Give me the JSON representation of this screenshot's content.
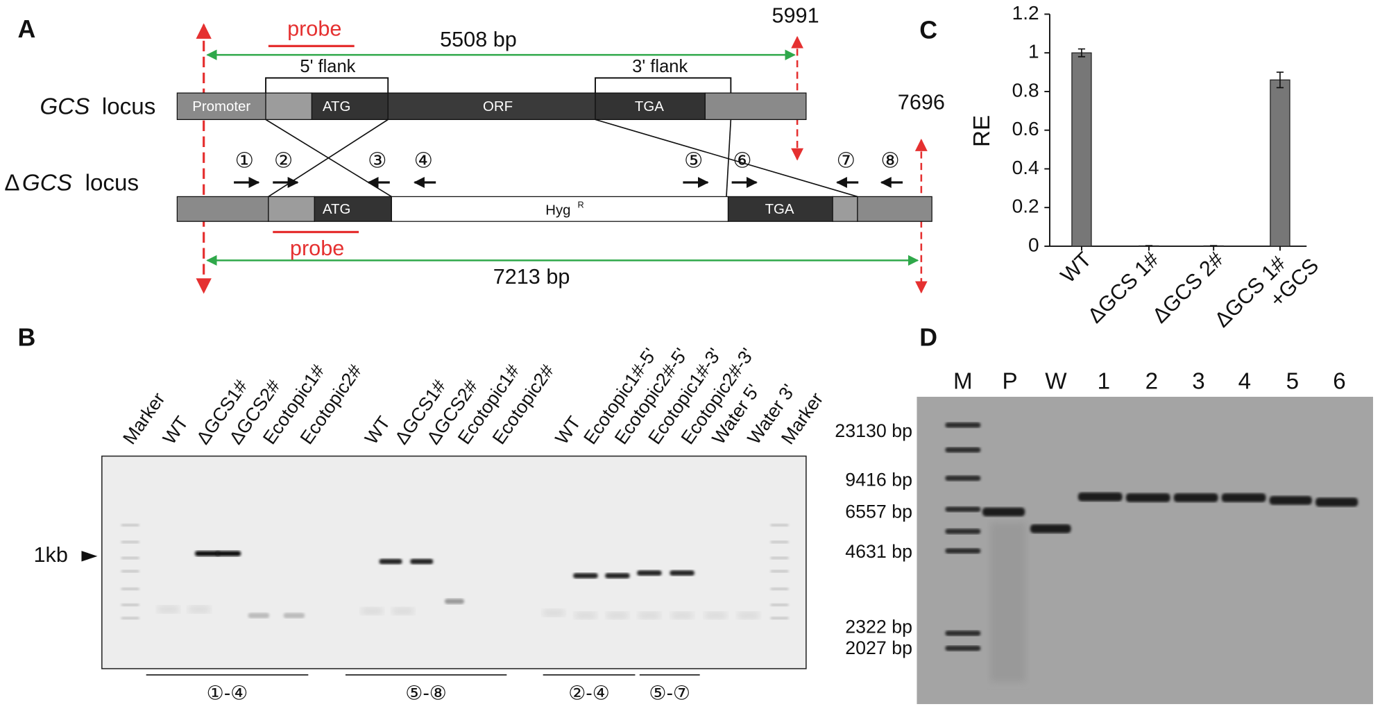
{
  "panel_a": {
    "letter": "A",
    "probe_top": "probe",
    "length_top": "5508 bp",
    "pos_top": "5991",
    "flank_5": "5' flank",
    "flank_3": "3' flank",
    "wt_locus": {
      "gene": "GCS",
      "label": "locus"
    },
    "wt_segments": [
      "Promoter",
      "ATG",
      "ORF",
      "TGA"
    ],
    "pos_right": "7696",
    "primers": [
      "①",
      "②",
      "③",
      "④",
      "⑤",
      "⑥",
      "⑦",
      "⑧"
    ],
    "mut_locus": {
      "delta": "Δ",
      "gene": "GCS",
      "label": "locus"
    },
    "mut_segments": {
      "atg": "ATG",
      "hyg": "Hyg",
      "hyg_sup": "R",
      "tga": "TGA"
    },
    "probe_bottom": "probe",
    "length_bottom": "7213 bp"
  },
  "panel_b": {
    "letter": "B",
    "lanes": [
      "Marker",
      "WT",
      "ΔGCS1#",
      "ΔGCS2#",
      "Ecotopic1#",
      "Ecotopic2#",
      "WT",
      "ΔGCS1#",
      "ΔGCS2#",
      "Ecotopic1#",
      "Ecotopic2#",
      "WT",
      "Ecotopic1#-5'",
      "Ecotopic2#-5'",
      "Ecotopic1#-3'",
      "Ecotopic2#-3'",
      "Water 5'",
      "Water 3'",
      "Marker"
    ],
    "size_marker": "1kb",
    "groups": [
      "①-④",
      "⑤-⑧",
      "②-④",
      "⑤-⑦"
    ]
  },
  "chart_data": {
    "type": "bar",
    "panel_label": "C",
    "ylabel": "RE",
    "categories": [
      "WT",
      "ΔGCS 1#",
      "ΔGCS 2#",
      "ΔGCS 1# +GCS"
    ],
    "values": [
      1.0,
      0.002,
      0.002,
      0.86
    ],
    "errors": [
      0.02,
      0.001,
      0.001,
      0.04
    ],
    "color": "#777777",
    "ylim": [
      0,
      1.2
    ],
    "yticks": [
      0,
      0.2,
      0.4,
      0.6,
      0.8,
      1,
      1.2
    ]
  },
  "panel_d": {
    "letter": "D",
    "lanes": [
      "M",
      "P",
      "W",
      "1",
      "2",
      "3",
      "4",
      "5",
      "6"
    ],
    "sizes": [
      "23130 bp",
      "9416 bp",
      "6557 bp",
      "4631 bp",
      "2322 bp",
      "2027 bp"
    ]
  }
}
